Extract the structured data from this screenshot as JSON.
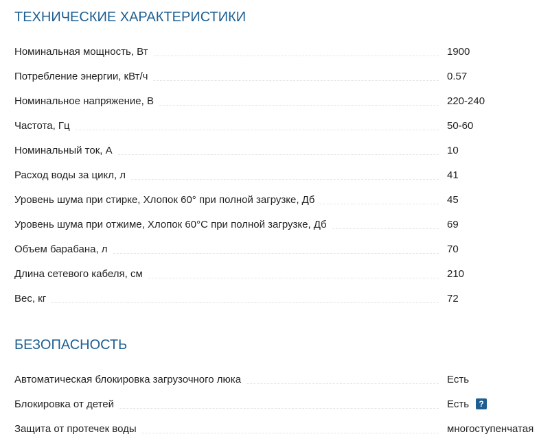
{
  "sections": [
    {
      "title": "ТЕХНИЧЕСКИЕ ХАРАКТЕРИСТИКИ",
      "rows": [
        {
          "label": "Номинальная мощность, Вт",
          "value": "1900"
        },
        {
          "label": "Потребление энергии, кВт/ч",
          "value": "0.57"
        },
        {
          "label": "Номинальное напряжение, В",
          "value": "220-240"
        },
        {
          "label": "Частота, Гц",
          "value": "50-60"
        },
        {
          "label": "Номинальный ток, А",
          "value": "10"
        },
        {
          "label": "Расход воды за цикл, л",
          "value": "41"
        },
        {
          "label": "Уровень шума при стирке, Хлопок 60° при полной загрузке, Дб",
          "value": "45"
        },
        {
          "label": "Уровень шума при отжиме, Хлопок 60°С при полной загрузке, Дб",
          "value": "69"
        },
        {
          "label": "Объем барабана, л",
          "value": "70"
        },
        {
          "label": "Длина сетевого кабеля, см",
          "value": "210"
        },
        {
          "label": "Вес, кг",
          "value": "72"
        }
      ]
    },
    {
      "title": "БЕЗОПАСНОСТЬ",
      "rows": [
        {
          "label": "Автоматическая блокировка загрузочного люка",
          "value": "Есть"
        },
        {
          "label": "Блокировка от детей",
          "value": "Есть",
          "help": "?"
        },
        {
          "label": "Защита от протечек воды",
          "value": "многоступенчатая"
        }
      ]
    }
  ],
  "colors": {
    "heading": "#1d5f93",
    "help_badge": "#1d5f93"
  }
}
